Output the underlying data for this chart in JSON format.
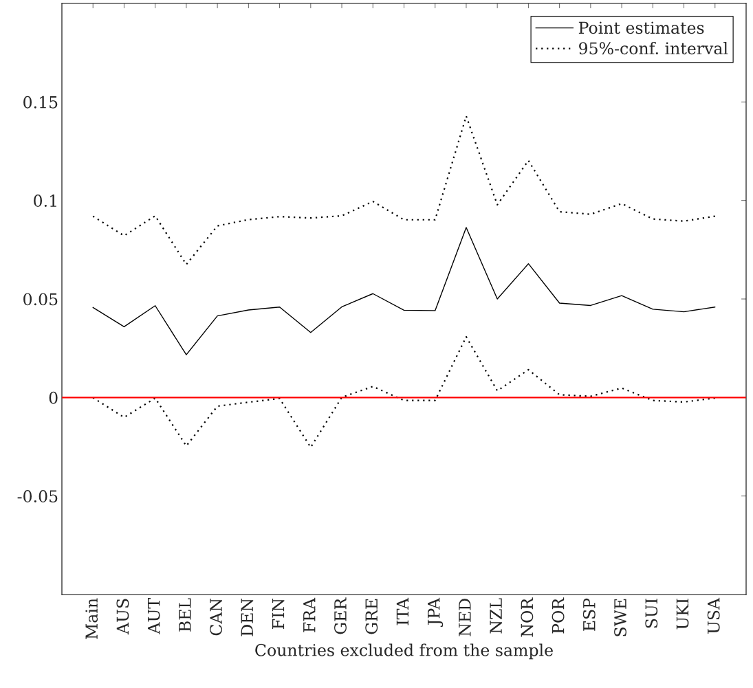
{
  "chart_data": {
    "type": "line",
    "xlabel": "Countries excluded from the sample",
    "categories": [
      "Main",
      "AUS",
      "AUT",
      "BEL",
      "CAN",
      "DEN",
      "FIN",
      "FRA",
      "GER",
      "GRE",
      "ITA",
      "JPA",
      "NED",
      "NZL",
      "NOR",
      "POR",
      "ESP",
      "SWE",
      "SUI",
      "UKI",
      "USA"
    ],
    "series": [
      {
        "name": "Point estimates",
        "color": "#000000",
        "line_style": "solid",
        "values": [
          0.0457,
          0.0359,
          0.0466,
          0.0217,
          0.0414,
          0.0444,
          0.0459,
          0.033,
          0.046,
          0.0527,
          0.0443,
          0.0441,
          0.0863,
          0.05,
          0.0679,
          0.0479,
          0.0467,
          0.0517,
          0.0448,
          0.0435,
          0.0459
        ]
      },
      {
        "name": "95%-conf. interval",
        "color": "#000000",
        "line_style": "dotted",
        "values": [
          0.092,
          0.0821,
          0.0922,
          0.0675,
          0.0871,
          0.0903,
          0.0918,
          0.0911,
          0.0922,
          0.0995,
          0.0902,
          0.0902,
          0.1428,
          0.0978,
          0.1203,
          0.0943,
          0.093,
          0.0984,
          0.0906,
          0.0895,
          0.092
        ]
      },
      {
        "color": "#000000",
        "line_style": "dotted",
        "values": [
          -0.0001,
          -0.0101,
          -0.0003,
          -0.0246,
          -0.0044,
          -0.0024,
          -0.0005,
          -0.0253,
          0.0001,
          0.0056,
          -0.0015,
          -0.0015,
          0.0308,
          0.0034,
          0.0141,
          0.0014,
          0.0006,
          0.0048,
          -0.0015,
          -0.0023,
          -0.0003
        ]
      }
    ],
    "ylim": [
      -0.1,
      0.2
    ],
    "yticks": [
      -0.05,
      0,
      0.05,
      0.1,
      0.15
    ],
    "ref_lines": [
      {
        "axis": "y",
        "value": 0,
        "color": "#ff0000",
        "line_style": "solid"
      }
    ],
    "legend": "top right",
    "grid": false,
    "marker": "none"
  }
}
